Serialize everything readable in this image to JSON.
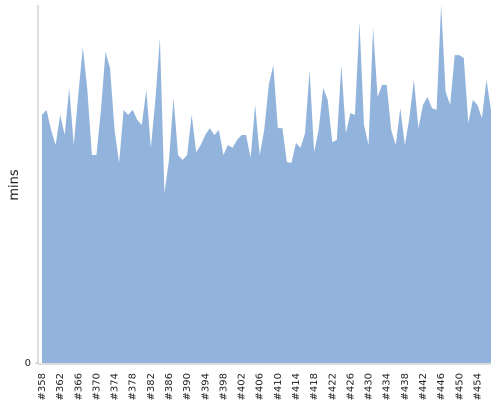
{
  "chart_data": {
    "type": "area",
    "y_label": "mins",
    "color": "#92b4dc",
    "categories": [
      "#358",
      null,
      null,
      null,
      "#362",
      null,
      null,
      null,
      "#366",
      null,
      null,
      null,
      "#370",
      null,
      null,
      null,
      "#374",
      null,
      null,
      null,
      "#378",
      null,
      null,
      null,
      "#382",
      null,
      null,
      null,
      "#386",
      null,
      null,
      null,
      "#390",
      null,
      null,
      null,
      "#394",
      null,
      null,
      null,
      "#398",
      null,
      null,
      null,
      "#402",
      null,
      null,
      null,
      "#406",
      null,
      null,
      null,
      "#410",
      null,
      null,
      null,
      "#414",
      null,
      null,
      null,
      "#418",
      null,
      null,
      null,
      "#422",
      null,
      null,
      null,
      "#426",
      null,
      null,
      null,
      "#430",
      null,
      null,
      null,
      "#434",
      null,
      null,
      null,
      "#438",
      null,
      null,
      null,
      "#442",
      null,
      null,
      null,
      "#446",
      null,
      null,
      null,
      "#450",
      null,
      null,
      null,
      "#454",
      null,
      null,
      null
    ],
    "values": [
      69.3,
      70.7,
      65.1,
      60.9,
      69.3,
      63.7,
      76.8,
      60.9,
      74.9,
      88.3,
      76.3,
      58.1,
      58.1,
      70.7,
      86.9,
      82.4,
      65.1,
      55.9,
      70.7,
      69.3,
      70.7,
      67.9,
      66.5,
      76.3,
      60.1,
      73.5,
      90.8,
      47.5,
      56.7,
      74.0,
      58.1,
      56.7,
      58.1,
      69.3,
      58.9,
      60.9,
      63.7,
      65.6,
      63.7,
      65.1,
      58.1,
      60.9,
      60.1,
      62.3,
      63.7,
      63.7,
      57.3,
      72.1,
      58.1,
      65.1,
      77.7,
      83.2,
      65.6,
      65.6,
      56.1,
      55.9,
      61.5,
      60.1,
      64.2,
      81.8,
      58.9,
      65.1,
      76.8,
      73.5,
      61.7,
      62.3,
      83.2,
      64.2,
      69.8,
      69.3,
      95.3,
      66.5,
      60.9,
      93.6,
      74.3,
      77.7,
      77.7,
      65.1,
      60.9,
      71.2,
      60.9,
      68.4,
      79.1,
      65.6,
      72.1,
      74.3,
      71.2,
      70.7,
      100,
      75.7,
      72.1,
      86.0,
      86.0,
      85.2,
      67.0,
      73.5,
      72.1,
      68.4,
      79.1,
      70.7
    ],
    "ylim": [
      0,
      100
    ],
    "yticks": [
      0
    ]
  }
}
